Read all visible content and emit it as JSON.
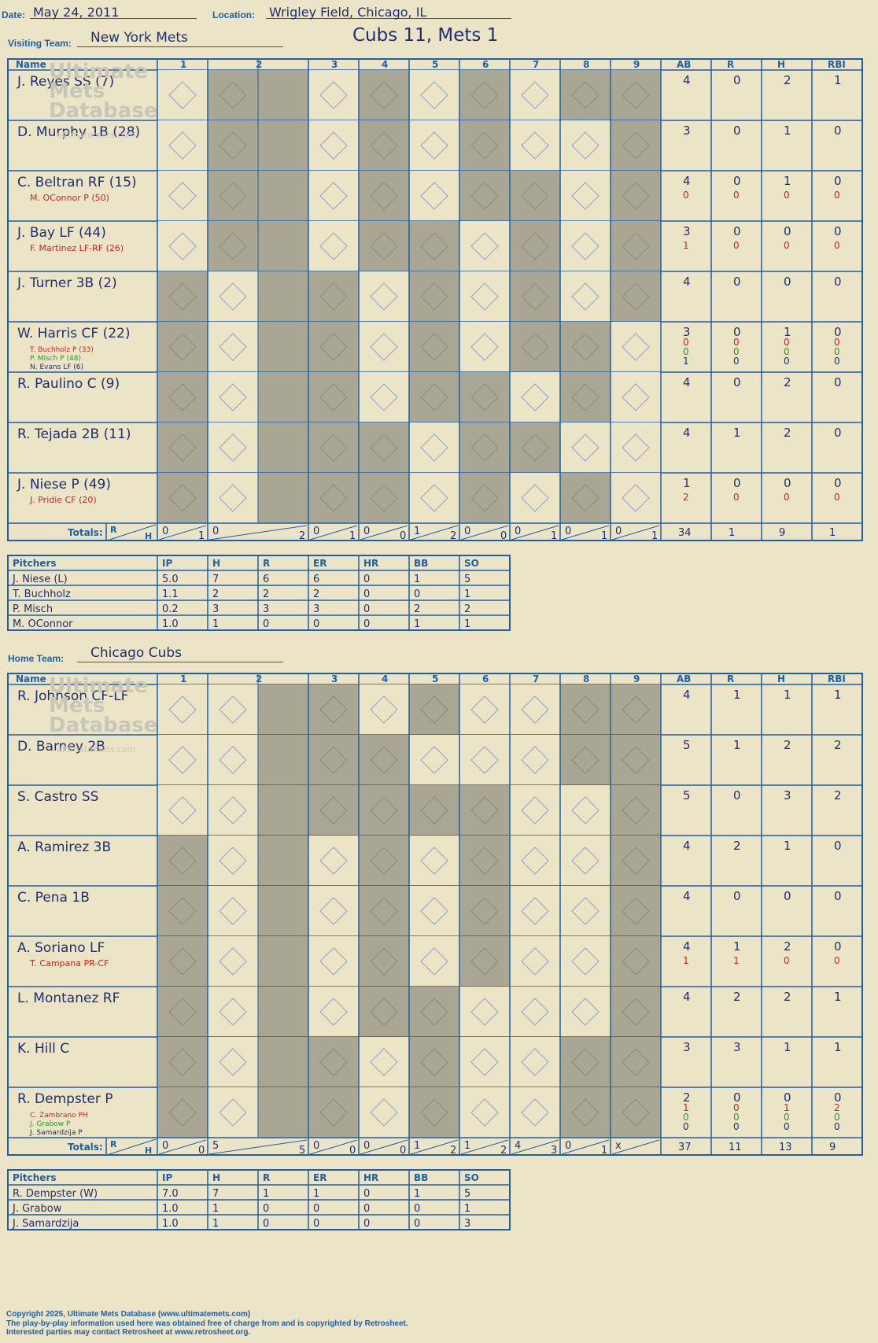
{
  "header": {
    "date_label": "Date:",
    "date": "May 24, 2011",
    "location_label": "Location:",
    "location": "Wrigley Field, Chicago, IL",
    "visiting_label": "Visiting Team:",
    "visiting_team": "New York Mets",
    "score_title": "Cubs 11, Mets 1",
    "home_label": "Home Team:",
    "home_team": "Chicago Cubs"
  },
  "watermark": [
    "Ultimate",
    "Mets",
    "Database",
    "ultimatemets.com"
  ],
  "columns": {
    "name": "Name",
    "innings": [
      "1",
      "2",
      "3",
      "4",
      "5",
      "6",
      "7",
      "8",
      "9"
    ],
    "stats": [
      "AB",
      "R",
      "H",
      "RBI"
    ],
    "totals": "Totals:",
    "r": "R",
    "h": "H"
  },
  "pitch_columns": [
    "Pitchers",
    "IP",
    "H",
    "R",
    "ER",
    "HR",
    "BB",
    "SO"
  ],
  "mets": {
    "rows": [
      {
        "name": "J. Reyes SS (7)",
        "subs": [],
        "stats": [
          [
            "4",
            "0",
            "2",
            "1"
          ]
        ]
      },
      {
        "name": "D. Murphy 1B (28)",
        "subs": [],
        "stats": [
          [
            "3",
            "0",
            "1",
            "0"
          ]
        ]
      },
      {
        "name": "C. Beltran RF (15)",
        "subs": [
          {
            "t": "M. OConnor P (50)",
            "c": "red"
          }
        ],
        "stats": [
          [
            "4",
            "0",
            "1",
            "0"
          ],
          [
            "0",
            "0",
            "0",
            "0"
          ]
        ]
      },
      {
        "name": "J. Bay LF (44)",
        "subs": [
          {
            "t": "F. Martinez LF-RF (26)",
            "c": "red"
          }
        ],
        "stats": [
          [
            "3",
            "0",
            "0",
            "0"
          ],
          [
            "1",
            "0",
            "0",
            "0"
          ]
        ]
      },
      {
        "name": "J. Turner 3B (2)",
        "subs": [],
        "stats": [
          [
            "4",
            "0",
            "0",
            "0"
          ]
        ]
      },
      {
        "name": "W. Harris CF (22)",
        "subs": [
          {
            "t": "T. Buchholz P (33)",
            "c": "red"
          },
          {
            "t": "P. Misch P (48)",
            "c": "green"
          },
          {
            "t": "N. Evans LF (6)",
            "c": "blue"
          }
        ],
        "stats": [
          [
            "3",
            "0",
            "1",
            "0"
          ],
          [
            "0",
            "0",
            "0",
            "0"
          ],
          [
            "0",
            "0",
            "0",
            "0"
          ],
          [
            "1",
            "0",
            "0",
            "0"
          ]
        ]
      },
      {
        "name": "R. Paulino C (9)",
        "subs": [],
        "stats": [
          [
            "4",
            "0",
            "2",
            "0"
          ]
        ]
      },
      {
        "name": "R. Tejada 2B (11)",
        "subs": [],
        "stats": [
          [
            "4",
            "1",
            "2",
            "0"
          ]
        ]
      },
      {
        "name": "J. Niese P (49)",
        "subs": [
          {
            "t": "J. Pridie CF (20)",
            "c": "red"
          }
        ],
        "stats": [
          [
            "1",
            "0",
            "0",
            "0"
          ],
          [
            "2",
            "0",
            "0",
            "0"
          ]
        ]
      }
    ],
    "totals": [
      [
        "0",
        "1"
      ],
      [
        "0",
        "2"
      ],
      [
        "0",
        "1"
      ],
      [
        "0",
        "0"
      ],
      [
        "1",
        "2"
      ],
      [
        "0",
        "0"
      ],
      [
        "0",
        "1"
      ],
      [
        "0",
        "1"
      ],
      [
        "0",
        "1"
      ]
    ],
    "stat_totals": [
      "34",
      "1",
      "9",
      "1"
    ],
    "pitchers": [
      [
        "J. Niese (L)",
        "5.0",
        "7",
        "6",
        "6",
        "0",
        "1",
        "5"
      ],
      [
        "T. Buchholz",
        "1.1",
        "2",
        "2",
        "2",
        "0",
        "0",
        "1"
      ],
      [
        "P. Misch",
        "0.2",
        "3",
        "3",
        "3",
        "0",
        "2",
        "2"
      ],
      [
        "M. OConnor",
        "1.0",
        "1",
        "0",
        "0",
        "0",
        "1",
        "1"
      ]
    ]
  },
  "cubs": {
    "rows": [
      {
        "name": "R. Johnson CF-LF",
        "subs": [],
        "stats": [
          [
            "4",
            "1",
            "1",
            "1"
          ]
        ]
      },
      {
        "name": "D. Barney 2B",
        "subs": [],
        "stats": [
          [
            "5",
            "1",
            "2",
            "2"
          ]
        ]
      },
      {
        "name": "S. Castro SS",
        "subs": [],
        "stats": [
          [
            "5",
            "0",
            "3",
            "2"
          ]
        ]
      },
      {
        "name": "A. Ramirez 3B",
        "subs": [],
        "stats": [
          [
            "4",
            "2",
            "1",
            "0"
          ]
        ]
      },
      {
        "name": "C. Pena 1B",
        "subs": [],
        "stats": [
          [
            "4",
            "0",
            "0",
            "0"
          ]
        ]
      },
      {
        "name": "A. Soriano LF",
        "subs": [
          {
            "t": "T. Campana PR-CF",
            "c": "red"
          }
        ],
        "stats": [
          [
            "4",
            "1",
            "2",
            "0"
          ],
          [
            "1",
            "1",
            "0",
            "0"
          ]
        ]
      },
      {
        "name": "L. Montanez RF",
        "subs": [],
        "stats": [
          [
            "4",
            "2",
            "2",
            "1"
          ]
        ]
      },
      {
        "name": "K. Hill C",
        "subs": [],
        "stats": [
          [
            "3",
            "3",
            "1",
            "1"
          ]
        ]
      },
      {
        "name": "R. Dempster P",
        "subs": [
          {
            "t": "C. Zambrano PH",
            "c": "red"
          },
          {
            "t": "J. Grabow P",
            "c": "green"
          },
          {
            "t": "J. Samardzija P",
            "c": "blue"
          }
        ],
        "stats": [
          [
            "2",
            "0",
            "0",
            "0"
          ],
          [
            "1",
            "0",
            "1",
            "2"
          ],
          [
            "0",
            "0",
            "0",
            "0"
          ],
          [
            "0",
            "0",
            "0",
            "0"
          ]
        ]
      }
    ],
    "totals": [
      [
        "0",
        "0"
      ],
      [
        "5",
        "5"
      ],
      [
        "0",
        "0"
      ],
      [
        "0",
        "0"
      ],
      [
        "1",
        "2"
      ],
      [
        "1",
        "2"
      ],
      [
        "4",
        "3"
      ],
      [
        "0",
        "1"
      ],
      [
        "x",
        ""
      ]
    ],
    "stat_totals": [
      "37",
      "11",
      "13",
      "9"
    ],
    "pitchers": [
      [
        "R. Dempster (W)",
        "7.0",
        "7",
        "1",
        "1",
        "0",
        "1",
        "5"
      ],
      [
        "J. Grabow",
        "1.0",
        "1",
        "0",
        "0",
        "0",
        "0",
        "1"
      ],
      [
        "J. Samardzija",
        "1.0",
        "1",
        "0",
        "0",
        "0",
        "0",
        "3"
      ]
    ]
  },
  "footer": [
    "Copyright 2025, Ultimate Mets Database (www.ultimatemets.com)",
    "The play-by-play information used here was obtained free of charge from and is copyrighted by Retrosheet.",
    "Interested parties may contact Retrosheet at www.retrosheet.org."
  ]
}
